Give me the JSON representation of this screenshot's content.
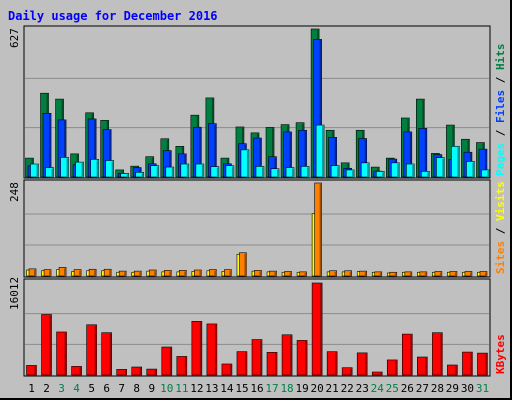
{
  "chart_data": [
    {
      "type": "bar",
      "title": "Daily usage for December 2016",
      "panel": "top",
      "ymax_label": "627",
      "ymax": 627,
      "categories": [
        "1",
        "2",
        "3",
        "4",
        "5",
        "6",
        "7",
        "8",
        "9",
        "10",
        "11",
        "12",
        "13",
        "14",
        "15",
        "16",
        "17",
        "18",
        "19",
        "20",
        "21",
        "22",
        "23",
        "24",
        "25",
        "26",
        "27",
        "28",
        "29",
        "30",
        "31"
      ],
      "weekend_days": [
        "3",
        "4",
        "10",
        "11",
        "17",
        "18",
        "24",
        "25",
        "31"
      ],
      "series": [
        {
          "name": "Hits",
          "color": "#008040",
          "values": [
            80,
            355,
            330,
            98,
            272,
            240,
            30,
            46,
            86,
            162,
            130,
            262,
            335,
            80,
            212,
            187,
            210,
            222,
            230,
            627,
            198,
            60,
            198,
            42,
            80,
            250,
            330,
            100,
            220,
            160,
            146
          ]
        },
        {
          "name": "Files",
          "color": "#0040ff",
          "values": [
            47,
            270,
            242,
            52,
            246,
            201,
            15,
            40,
            56,
            112,
            98,
            211,
            226,
            56,
            141,
            165,
            86,
            191,
            198,
            583,
            168,
            37,
            163,
            25,
            76,
            191,
            206,
            95,
            75,
            105,
            118
          ]
        },
        {
          "name": "Pages",
          "color": "#00ffff",
          "values": [
            55,
            40,
            83,
            63,
            75,
            70,
            15,
            20,
            48,
            42,
            55,
            55,
            44,
            48,
            115,
            45,
            35,
            40,
            45,
            220,
            48,
            30,
            60,
            24,
            60,
            55,
            24,
            82,
            130,
            66,
            30
          ]
        }
      ],
      "legend": "right, vertical: Pages / Files / Hits"
    },
    {
      "type": "bar",
      "panel": "middle",
      "ymax_label": "248",
      "ymax": 248,
      "series": [
        {
          "name": "Visits",
          "color": "#ffff00",
          "values": [
            16,
            14,
            17,
            12,
            14,
            14,
            10,
            10,
            13,
            11,
            11,
            12,
            14,
            12,
            58,
            13,
            11,
            10,
            10,
            166,
            11,
            11,
            12,
            10,
            8,
            10,
            10,
            10,
            10,
            10,
            10
          ]
        },
        {
          "name": "Sites",
          "color": "#ff8000",
          "values": [
            19,
            17,
            23,
            17,
            18,
            18,
            13,
            13,
            16,
            15,
            15,
            16,
            17,
            17,
            62,
            15,
            13,
            12,
            11,
            248,
            14,
            14,
            13,
            11,
            10,
            11,
            11,
            12,
            12,
            12,
            12
          ]
        }
      ],
      "legend": "right, vertical: Sites / Visits"
    },
    {
      "type": "bar",
      "panel": "bottom",
      "ymax_label": "16012",
      "ymax": 16012,
      "series": [
        {
          "name": "KBytes",
          "color": "#ff0000",
          "values": [
            1670,
            10530,
            7490,
            1500,
            8740,
            7360,
            980,
            1390,
            1030,
            4870,
            3230,
            9340,
            8890,
            1920,
            4070,
            6170,
            3940,
            7000,
            6020,
            16012,
            4060,
            1270,
            3850,
            520,
            2620,
            7120,
            3130,
            7360,
            1740,
            3990,
            3810
          ]
        }
      ],
      "legend": "right, vertical: KBytes"
    }
  ]
}
